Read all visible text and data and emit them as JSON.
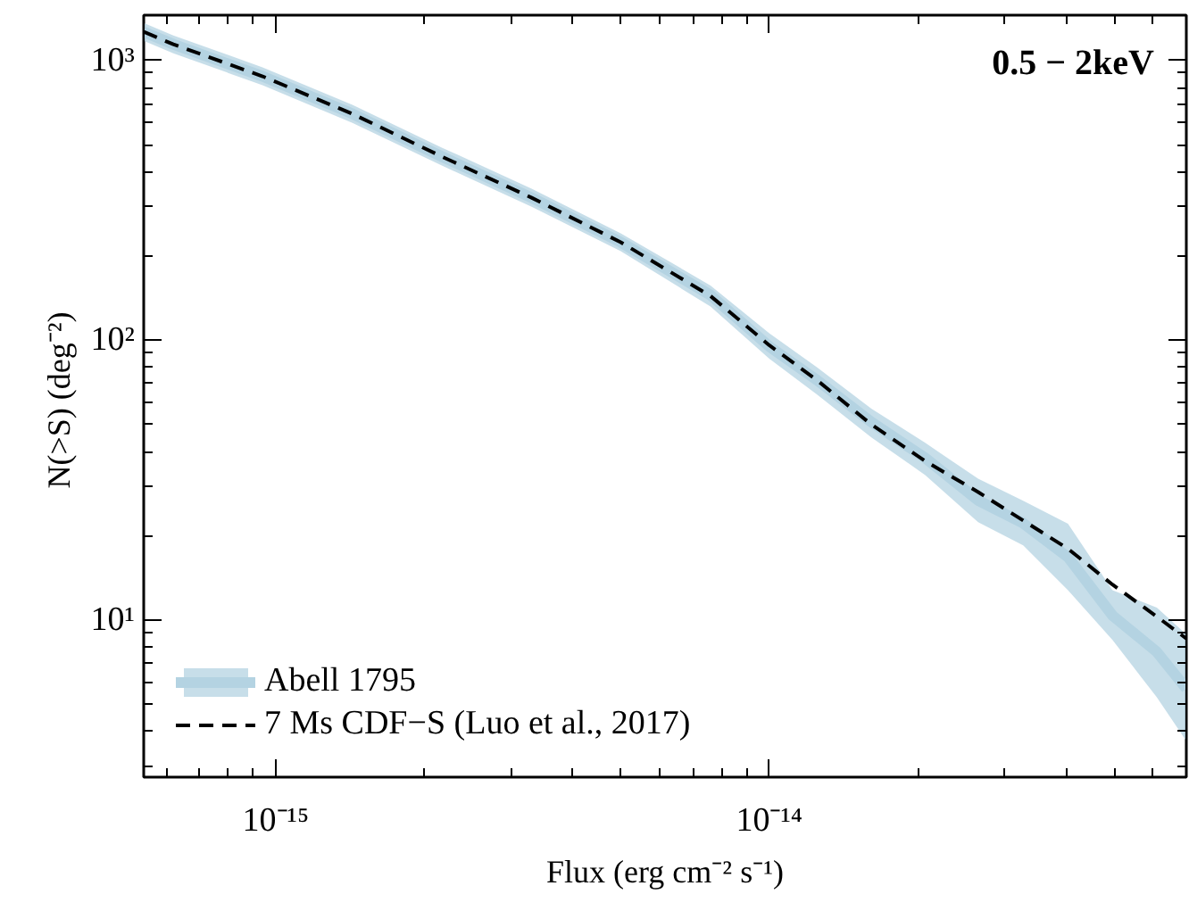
{
  "chart_data": {
    "type": "line",
    "xlabel": "Flux (erg cm⁻² s⁻¹)",
    "ylabel": "N(>S)  (deg⁻²)",
    "log": "xy",
    "grid": false,
    "legend": "bottom left",
    "annotations": [
      "0.5 − 2keV"
    ],
    "xlim": [
      5.4e-16,
      7e-14
    ],
    "ylim": [
      2.75,
      1450
    ],
    "xticks": [
      {
        "value": 6e-16,
        "label": null
      },
      {
        "value": 7e-16,
        "label": null
      },
      {
        "value": 8e-16,
        "label": null
      },
      {
        "value": 9e-16,
        "label": null
      },
      {
        "value": 1e-15,
        "label": "10⁻¹⁵"
      },
      {
        "value": 2e-15,
        "label": null
      },
      {
        "value": 3e-15,
        "label": null
      },
      {
        "value": 4e-15,
        "label": null
      },
      {
        "value": 5e-15,
        "label": null
      },
      {
        "value": 6e-15,
        "label": null
      },
      {
        "value": 7e-15,
        "label": null
      },
      {
        "value": 8e-15,
        "label": null
      },
      {
        "value": 9e-15,
        "label": null
      },
      {
        "value": 1e-14,
        "label": "10⁻¹⁴"
      },
      {
        "value": 2e-14,
        "label": null
      },
      {
        "value": 3e-14,
        "label": null
      },
      {
        "value": 4e-14,
        "label": null
      },
      {
        "value": 5e-14,
        "label": null
      },
      {
        "value": 6e-14,
        "label": null
      },
      {
        "value": 7e-14,
        "label": null
      }
    ],
    "yticks": [
      {
        "value": 3,
        "label": null
      },
      {
        "value": 4,
        "label": null
      },
      {
        "value": 5,
        "label": null
      },
      {
        "value": 6,
        "label": null
      },
      {
        "value": 7,
        "label": null
      },
      {
        "value": 8,
        "label": null
      },
      {
        "value": 9,
        "label": null
      },
      {
        "value": 10,
        "label": "10¹"
      },
      {
        "value": 20,
        "label": null
      },
      {
        "value": 30,
        "label": null
      },
      {
        "value": 40,
        "label": null
      },
      {
        "value": 50,
        "label": null
      },
      {
        "value": 60,
        "label": null
      },
      {
        "value": 70,
        "label": null
      },
      {
        "value": 80,
        "label": null
      },
      {
        "value": 90,
        "label": null
      },
      {
        "value": 100,
        "label": "10²"
      },
      {
        "value": 200,
        "label": null
      },
      {
        "value": 300,
        "label": null
      },
      {
        "value": 400,
        "label": null
      },
      {
        "value": 500,
        "label": null
      },
      {
        "value": 600,
        "label": null
      },
      {
        "value": 700,
        "label": null
      },
      {
        "value": 800,
        "label": null
      },
      {
        "value": 900,
        "label": null
      },
      {
        "value": 1000,
        "label": "10³"
      }
    ],
    "x": [
      5.4e-16,
      6.2e-16,
      9.4e-16,
      1.43e-15,
      2.17e-15,
      3.3e-15,
      5e-15,
      7.6e-15,
      1e-14,
      1.25e-14,
      1.61e-14,
      2.07e-14,
      2.65e-14,
      3.27e-14,
      4.03e-14,
      4.96e-14,
      6.1e-14,
      7e-14
    ],
    "series": [
      {
        "name": "Abell 1795",
        "color": "#b4d3e2",
        "line_style": "solid",
        "values": [
          1264,
          1141,
          877,
          644,
          453,
          323,
          224,
          145,
          95,
          72,
          51,
          38,
          26.8,
          22.2,
          16.8,
          10.4,
          7.7,
          5.7
        ],
        "upper": [
          1361,
          1228,
          944,
          693,
          488,
          348,
          241,
          157,
          106,
          80,
          57,
          43,
          32,
          26.7,
          22.1,
          12.8,
          11.1,
          8.9
        ],
        "lower": [
          1175,
          1060,
          815,
          598,
          421,
          300,
          208,
          132,
          86,
          64,
          45,
          33,
          22.4,
          18.5,
          12.8,
          8.5,
          5.3,
          3.7
        ]
      },
      {
        "name": "7 Ms CDF−S (Luo et al., 2017)",
        "color": "#000000",
        "line_style": "dashed",
        "values": [
          1264,
          1141,
          877,
          644,
          453,
          323,
          224,
          144,
          96,
          72,
          50,
          37,
          28.7,
          22.7,
          18.0,
          13.4,
          10.3,
          8.6
        ]
      }
    ]
  }
}
